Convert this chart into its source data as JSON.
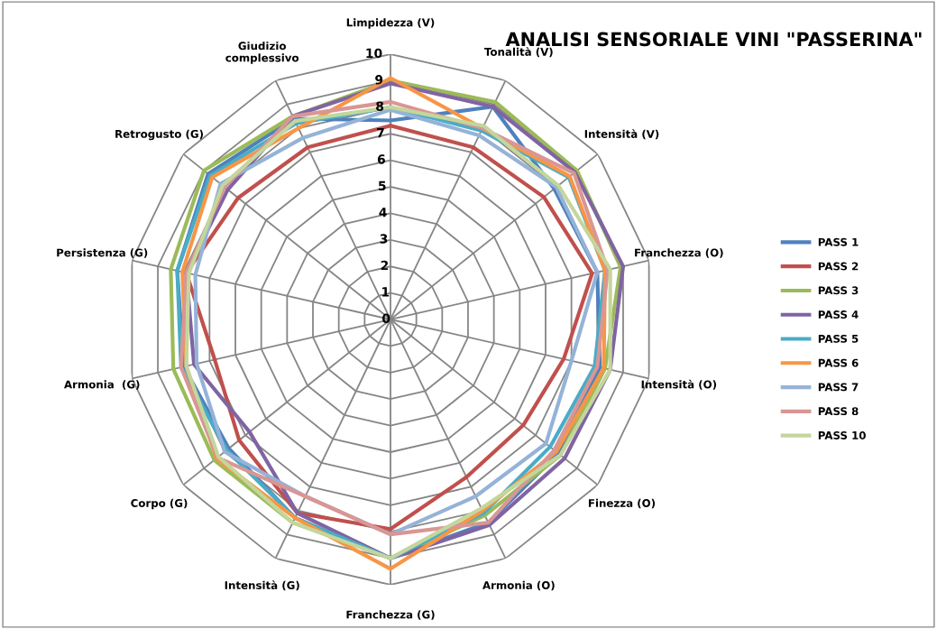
{
  "chart_data": {
    "type": "radar",
    "title": "ANALISI SENSORIALE VINI \"PASSERINA\"",
    "categories": [
      "Limpidezza (V)",
      "Tonalità (V)",
      "Intensità (V)",
      "Franchezza (O)",
      "Intensità (O)",
      "Finezza (O)",
      "Armonia (O)",
      "Franchezza (G)",
      "Intensità (G)",
      "Corpo (G)",
      "Armonia  (G)",
      "Persistenza (G)",
      "Retrogusto (G)",
      "Giudizio\ncomplessivo"
    ],
    "ylim": [
      0,
      10
    ],
    "yticks": [
      0,
      1,
      2,
      3,
      4,
      5,
      6,
      7,
      8,
      9,
      10
    ],
    "grid": true,
    "legend": "right",
    "marker": "none",
    "series": [
      {
        "name": "PASS 1",
        "color": "#4f81bd",
        "values": [
          7.5,
          8.9,
          7.9,
          8.0,
          8.1,
          8.1,
          8.5,
          9.0,
          8.3,
          7.8,
          8.0,
          8.25,
          8.8,
          8.4
        ]
      },
      {
        "name": "PASS 2",
        "color": "#c0504d",
        "values": [
          7.3,
          7.2,
          7.4,
          7.8,
          6.7,
          6.4,
          6.6,
          7.9,
          8.1,
          7.3,
          6.8,
          7.9,
          7.35,
          7.2
        ]
      },
      {
        "name": "PASS 3",
        "color": "#9bbb59",
        "values": [
          9.0,
          9.1,
          9.0,
          8.9,
          8.3,
          8.2,
          8.2,
          9.0,
          8.5,
          8.5,
          8.4,
          8.5,
          9.0,
          8.5
        ]
      },
      {
        "name": "PASS 4",
        "color": "#8064a2",
        "values": [
          8.9,
          8.9,
          8.9,
          9.0,
          8.5,
          8.4,
          8.6,
          9.0,
          8.1,
          6.8,
          7.6,
          7.9,
          7.85,
          8.5
        ]
      },
      {
        "name": "PASS 5",
        "color": "#4bacc6",
        "values": [
          8.0,
          7.9,
          8.6,
          8.3,
          7.9,
          7.7,
          8.1,
          9.0,
          8.3,
          7.9,
          8.1,
          8.25,
          8.7,
          8.2
        ]
      },
      {
        "name": "PASS 6",
        "color": "#f79646",
        "values": [
          9.1,
          8.0,
          8.65,
          8.3,
          8.25,
          8.0,
          8.0,
          9.4,
          8.3,
          8.4,
          7.9,
          8.05,
          8.6,
          8.0
        ]
      },
      {
        "name": "PASS 7",
        "color": "#95b3d7",
        "values": [
          7.9,
          7.7,
          8.0,
          8.0,
          7.0,
          7.5,
          7.4,
          8.1,
          7.4,
          8.0,
          7.5,
          7.55,
          8.2,
          7.6
        ]
      },
      {
        "name": "PASS 8",
        "color": "#d99694",
        "values": [
          8.2,
          8.0,
          8.85,
          8.4,
          8.0,
          7.9,
          8.5,
          8.1,
          7.4,
          8.35,
          8.1,
          7.9,
          8.0,
          8.5
        ]
      },
      {
        "name": "PASS 10",
        "color": "#c3d69b",
        "values": [
          8.0,
          8.1,
          8.1,
          8.5,
          8.5,
          8.2,
          7.9,
          9.0,
          8.5,
          8.3,
          7.9,
          7.8,
          8.1,
          8.3
        ]
      }
    ]
  }
}
